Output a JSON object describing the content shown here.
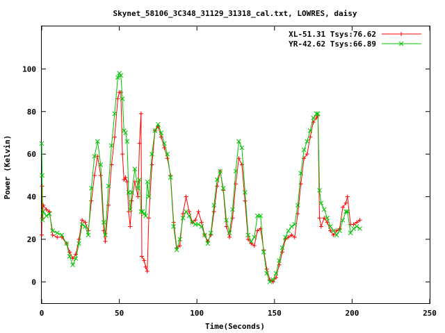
{
  "chart_data": {
    "type": "line",
    "title": "Skynet_58106_3C348_31129_31318_cal.txt, LOWRES, daisy",
    "xlabel": "Time(Seconds)",
    "ylabel": "Power (Kelvin)",
    "xlim": [
      0,
      250
    ],
    "ylim": [
      -10,
      120
    ],
    "xticks": [
      0,
      50,
      100,
      150,
      200,
      250
    ],
    "yticks": [
      0,
      20,
      40,
      60,
      80,
      100
    ],
    "xtick_labels": [
      "0",
      "50",
      "100",
      "150",
      "200",
      "250"
    ],
    "ytick_labels": [
      "0",
      "20",
      "40",
      "60",
      "80",
      "100"
    ],
    "grid": false,
    "legend_position": "top-right",
    "series": [
      {
        "name": "XL-51.31 Tsys:76.62",
        "color": "#ff0000",
        "marker": "plus",
        "points": [
          [
            0,
            22
          ],
          [
            0.3,
            45
          ],
          [
            0.6,
            30
          ],
          [
            1,
            36
          ],
          [
            3,
            34
          ],
          [
            5,
            33
          ],
          [
            7,
            22
          ],
          [
            10,
            21
          ],
          [
            13,
            21
          ],
          [
            16,
            18
          ],
          [
            18,
            14
          ],
          [
            20,
            11
          ],
          [
            22,
            13
          ],
          [
            24,
            20
          ],
          [
            26,
            29
          ],
          [
            28,
            28
          ],
          [
            30,
            24
          ],
          [
            32,
            38
          ],
          [
            34,
            50
          ],
          [
            36,
            59
          ],
          [
            38,
            50
          ],
          [
            40,
            24
          ],
          [
            41,
            19
          ],
          [
            43,
            36
          ],
          [
            45,
            55
          ],
          [
            47,
            68
          ],
          [
            49,
            86
          ],
          [
            50,
            89
          ],
          [
            51,
            89
          ],
          [
            52,
            60
          ],
          [
            53,
            48
          ],
          [
            54,
            49
          ],
          [
            55,
            47
          ],
          [
            56,
            33
          ],
          [
            57,
            26
          ],
          [
            58,
            38
          ],
          [
            60,
            47
          ],
          [
            62,
            40
          ],
          [
            63,
            65
          ],
          [
            64,
            79
          ],
          [
            64.5,
            12
          ],
          [
            66,
            10
          ],
          [
            67,
            7
          ],
          [
            68,
            5
          ],
          [
            69,
            30
          ],
          [
            71,
            55
          ],
          [
            73,
            71
          ],
          [
            75,
            73
          ],
          [
            77,
            68
          ],
          [
            79,
            63
          ],
          [
            81,
            58
          ],
          [
            83,
            50
          ],
          [
            85,
            28
          ],
          [
            87,
            16
          ],
          [
            89,
            17
          ],
          [
            91,
            32
          ],
          [
            93,
            40
          ],
          [
            95,
            33
          ],
          [
            97,
            28
          ],
          [
            99,
            29
          ],
          [
            101,
            33
          ],
          [
            103,
            28
          ],
          [
            105,
            22
          ],
          [
            107,
            19
          ],
          [
            109,
            22
          ],
          [
            111,
            33
          ],
          [
            113,
            45
          ],
          [
            115,
            52
          ],
          [
            117,
            43
          ],
          [
            119,
            26
          ],
          [
            121,
            21
          ],
          [
            123,
            30
          ],
          [
            125,
            46
          ],
          [
            127,
            58
          ],
          [
            129,
            55
          ],
          [
            131,
            38
          ],
          [
            133,
            20
          ],
          [
            135,
            18
          ],
          [
            137,
            17
          ],
          [
            139,
            24
          ],
          [
            141,
            25
          ],
          [
            143,
            15
          ],
          [
            145,
            6
          ],
          [
            147,
            1
          ],
          [
            149,
            0
          ],
          [
            151,
            2
          ],
          [
            153,
            8
          ],
          [
            155,
            14
          ],
          [
            157,
            20
          ],
          [
            159,
            21
          ],
          [
            161,
            22
          ],
          [
            163,
            21
          ],
          [
            165,
            32
          ],
          [
            167,
            46
          ],
          [
            169,
            58
          ],
          [
            171,
            60
          ],
          [
            173,
            68
          ],
          [
            175,
            75
          ],
          [
            177,
            77
          ],
          [
            178,
            78
          ],
          [
            179,
            30
          ],
          [
            180,
            26
          ],
          [
            182,
            30
          ],
          [
            184,
            28
          ],
          [
            186,
            24
          ],
          [
            188,
            22
          ],
          [
            190,
            24
          ],
          [
            192,
            25
          ],
          [
            194,
            35
          ],
          [
            196,
            37
          ],
          [
            197,
            40
          ],
          [
            199,
            27
          ],
          [
            201,
            27
          ],
          [
            203,
            28
          ],
          [
            205,
            29
          ]
        ]
      },
      {
        "name": "YR-42.62 Tsys:66.89",
        "color": "#00c000",
        "marker": "cross",
        "points": [
          [
            0,
            65
          ],
          [
            0.3,
            50
          ],
          [
            0.6,
            29
          ],
          [
            1,
            33
          ],
          [
            3,
            31
          ],
          [
            5,
            32
          ],
          [
            7,
            24
          ],
          [
            10,
            23
          ],
          [
            13,
            22
          ],
          [
            16,
            18
          ],
          [
            18,
            12
          ],
          [
            20,
            8
          ],
          [
            22,
            11
          ],
          [
            24,
            18
          ],
          [
            26,
            27
          ],
          [
            28,
            26
          ],
          [
            30,
            22
          ],
          [
            32,
            44
          ],
          [
            34,
            59
          ],
          [
            36,
            66
          ],
          [
            38,
            55
          ],
          [
            40,
            28
          ],
          [
            41,
            22
          ],
          [
            43,
            45
          ],
          [
            45,
            64
          ],
          [
            47,
            79
          ],
          [
            49,
            96
          ],
          [
            50,
            98
          ],
          [
            51,
            97
          ],
          [
            52,
            86
          ],
          [
            53,
            71
          ],
          [
            54,
            70
          ],
          [
            55,
            66
          ],
          [
            56,
            42
          ],
          [
            57,
            34
          ],
          [
            58,
            42
          ],
          [
            60,
            53
          ],
          [
            62,
            44
          ],
          [
            63,
            48
          ],
          [
            64,
            33
          ],
          [
            65,
            33
          ],
          [
            66,
            32
          ],
          [
            67,
            31
          ],
          [
            68,
            47
          ],
          [
            69,
            40
          ],
          [
            71,
            60
          ],
          [
            73,
            71
          ],
          [
            75,
            74
          ],
          [
            77,
            70
          ],
          [
            79,
            65
          ],
          [
            81,
            60
          ],
          [
            83,
            49
          ],
          [
            85,
            26
          ],
          [
            87,
            15
          ],
          [
            89,
            20
          ],
          [
            91,
            30
          ],
          [
            93,
            33
          ],
          [
            95,
            31
          ],
          [
            97,
            28
          ],
          [
            99,
            27
          ],
          [
            101,
            27
          ],
          [
            103,
            26
          ],
          [
            105,
            22
          ],
          [
            107,
            18
          ],
          [
            109,
            23
          ],
          [
            111,
            36
          ],
          [
            113,
            48
          ],
          [
            115,
            52
          ],
          [
            117,
            44
          ],
          [
            119,
            29
          ],
          [
            121,
            23
          ],
          [
            123,
            34
          ],
          [
            125,
            52
          ],
          [
            127,
            66
          ],
          [
            129,
            63
          ],
          [
            131,
            42
          ],
          [
            133,
            22
          ],
          [
            135,
            19
          ],
          [
            137,
            21
          ],
          [
            139,
            31
          ],
          [
            141,
            31
          ],
          [
            143,
            14
          ],
          [
            145,
            4
          ],
          [
            147,
            0
          ],
          [
            149,
            1
          ],
          [
            151,
            4
          ],
          [
            153,
            10
          ],
          [
            155,
            16
          ],
          [
            157,
            21
          ],
          [
            159,
            24
          ],
          [
            161,
            26
          ],
          [
            163,
            27
          ],
          [
            165,
            36
          ],
          [
            167,
            51
          ],
          [
            169,
            62
          ],
          [
            171,
            66
          ],
          [
            173,
            71
          ],
          [
            175,
            77
          ],
          [
            177,
            79
          ],
          [
            178,
            79
          ],
          [
            179,
            43
          ],
          [
            180,
            37
          ],
          [
            182,
            34
          ],
          [
            184,
            30
          ],
          [
            186,
            26
          ],
          [
            188,
            24
          ],
          [
            190,
            22
          ],
          [
            192,
            24
          ],
          [
            194,
            29
          ],
          [
            196,
            33
          ],
          [
            197,
            33
          ],
          [
            199,
            23
          ],
          [
            201,
            25
          ],
          [
            203,
            26
          ],
          [
            205,
            25
          ]
        ]
      }
    ]
  }
}
